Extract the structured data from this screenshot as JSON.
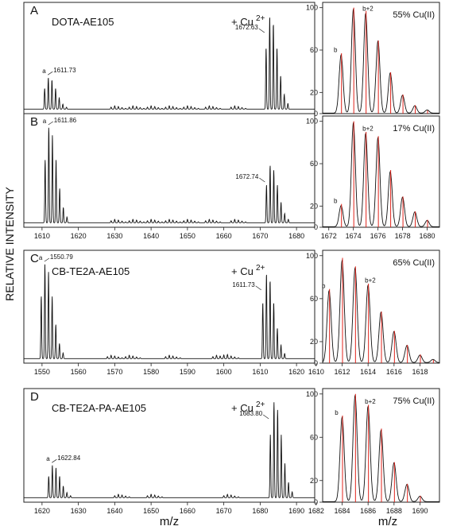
{
  "figure": {
    "ylabel": "RELATIVE INTENSITY",
    "xlabel_left": "m/z",
    "xlabel_right": "m/z"
  },
  "chart_data": [
    {
      "id": "A",
      "type": "line",
      "letter": "A",
      "compound": "DOTA-AE105",
      "cu_label": "+ Cu",
      "cu_sup": "2+",
      "xlim": [
        1605,
        1685
      ],
      "ylim": [
        0,
        100
      ],
      "show_xticks": false,
      "xticks": [],
      "peaks": [
        {
          "mz": 1611.73,
          "rel": 34
        },
        {
          "mz": 1672.63,
          "rel": 100
        }
      ],
      "minor": [
        1629,
        1634,
        1639,
        1644,
        1649,
        1655,
        1662
      ],
      "labels": [
        {
          "text": "a",
          "mz": 1611.73
        },
        {
          "text": "1611.73",
          "mz": 1611.73
        },
        {
          "text": "1672.63",
          "mz": 1672.63
        }
      ]
    },
    {
      "id": "A-inset",
      "type": "line",
      "percent_label": "55% Cu(II)",
      "xlim": [
        1671.5,
        1681
      ],
      "ylim": [
        0,
        105
      ],
      "show_xticks": false,
      "xticks": [],
      "yticks": [
        0,
        20,
        60,
        100
      ],
      "x": [
        1673,
        1674,
        1675,
        1676,
        1677,
        1678,
        1679,
        1680
      ],
      "y": [
        55,
        98,
        94,
        68,
        38,
        17,
        7,
        3
      ],
      "model": [
        57,
        100,
        97,
        69,
        39,
        18,
        8,
        3
      ],
      "peak_labels": [
        {
          "text": "b",
          "index": 0
        },
        {
          "text": "b+2",
          "index": 2
        }
      ]
    },
    {
      "id": "B",
      "type": "line",
      "letter": "B",
      "xlim": [
        1605,
        1685
      ],
      "ylim": [
        0,
        100
      ],
      "show_xticks": true,
      "xticks": [
        1610,
        1620,
        1630,
        1640,
        1650,
        1660,
        1670,
        1680
      ],
      "peaks": [
        {
          "mz": 1611.86,
          "rel": 100
        },
        {
          "mz": 1672.74,
          "rel": 60
        }
      ],
      "minor": [
        1629,
        1634,
        1639,
        1644,
        1649,
        1655,
        1662
      ],
      "labels": [
        {
          "text": "a",
          "mz": 1611.86
        },
        {
          "text": "1611.86",
          "mz": 1611.86
        },
        {
          "text": "1672.74",
          "mz": 1672.74
        }
      ]
    },
    {
      "id": "B-inset",
      "type": "line",
      "percent_label": "17% Cu(II)",
      "xlim": [
        1671.5,
        1681
      ],
      "ylim": [
        0,
        105
      ],
      "show_xticks": true,
      "xticks": [
        1672,
        1674,
        1676,
        1678,
        1680
      ],
      "yticks": [
        0,
        20,
        60,
        100
      ],
      "x": [
        1673,
        1674,
        1675,
        1676,
        1677,
        1678,
        1679,
        1680
      ],
      "y": [
        20,
        98,
        88,
        84,
        52,
        28,
        14,
        6
      ],
      "model": [
        22,
        100,
        90,
        86,
        54,
        29,
        15,
        7
      ],
      "peak_labels": [
        {
          "text": "b",
          "index": 0
        },
        {
          "text": "b+2",
          "index": 2
        }
      ]
    },
    {
      "id": "C",
      "type": "line",
      "letter": "C",
      "compound": "CB-TE2A-AE105",
      "cu_label": "+ Cu",
      "cu_sup": "2+",
      "xlim": [
        1545,
        1625
      ],
      "ylim": [
        0,
        100
      ],
      "show_xticks": true,
      "xticks": [
        1550,
        1560,
        1570,
        1580,
        1590,
        1600,
        1610,
        1620
      ],
      "peaks": [
        {
          "mz": 1550.79,
          "rel": 100
        },
        {
          "mz": 1611.73,
          "rel": 90
        }
      ],
      "minor": [
        1568,
        1573,
        1584,
        1597,
        1600
      ],
      "labels": [
        {
          "text": "a",
          "mz": 1550.79
        },
        {
          "text": "1550.79",
          "mz": 1550.79
        },
        {
          "text": "1611.73",
          "mz": 1611.73
        }
      ]
    },
    {
      "id": "C-inset",
      "type": "line",
      "percent_label": "65% Cu(II)",
      "xlim": [
        1610.5,
        1619.5
      ],
      "ylim": [
        0,
        105
      ],
      "show_xticks": true,
      "xticks": [
        1610,
        1612,
        1614,
        1616,
        1618
      ],
      "yticks": [
        0,
        20,
        60,
        100
      ],
      "x": [
        1611,
        1612,
        1613,
        1614,
        1615,
        1616,
        1617,
        1618,
        1619
      ],
      "y": [
        67,
        95,
        88,
        72,
        47,
        29,
        16,
        7,
        3
      ],
      "model": [
        69,
        98,
        90,
        74,
        48,
        30,
        17,
        8,
        3
      ],
      "peak_labels": [
        {
          "text": "b",
          "index": 0
        },
        {
          "text": "b+2",
          "index": 3
        }
      ]
    },
    {
      "id": "D",
      "type": "line",
      "letter": "D",
      "compound": "CB-TE2A-PA-AE105",
      "cu_label": "+ Cu",
      "cu_sup": "2+",
      "xlim": [
        1615,
        1695
      ],
      "ylim": [
        0,
        100
      ],
      "show_xticks": true,
      "xticks": [
        1620,
        1630,
        1640,
        1650,
        1660,
        1670,
        1680,
        1690
      ],
      "peaks": [
        {
          "mz": 1622.84,
          "rel": 34
        },
        {
          "mz": 1683.8,
          "rel": 100
        }
      ],
      "minor": [
        1640,
        1649,
        1670
      ],
      "labels": [
        {
          "text": "a",
          "mz": 1622.84
        },
        {
          "text": "1622.84",
          "mz": 1622.84
        },
        {
          "text": "1683.80",
          "mz": 1683.8
        }
      ]
    },
    {
      "id": "D-inset",
      "type": "line",
      "percent_label": "75% Cu(II)",
      "xlim": [
        1682.5,
        1691.5
      ],
      "ylim": [
        0,
        105
      ],
      "show_xticks": true,
      "xticks": [
        1682,
        1684,
        1686,
        1688,
        1690
      ],
      "yticks": [
        0,
        20,
        60,
        100
      ],
      "x": [
        1684,
        1685,
        1686,
        1687,
        1688,
        1689,
        1690
      ],
      "y": [
        78,
        98,
        88,
        66,
        36,
        16,
        5
      ],
      "model": [
        80,
        100,
        90,
        68,
        37,
        17,
        6
      ],
      "peak_labels": [
        {
          "text": "b",
          "index": 0
        },
        {
          "text": "b+2",
          "index": 2
        }
      ]
    }
  ]
}
